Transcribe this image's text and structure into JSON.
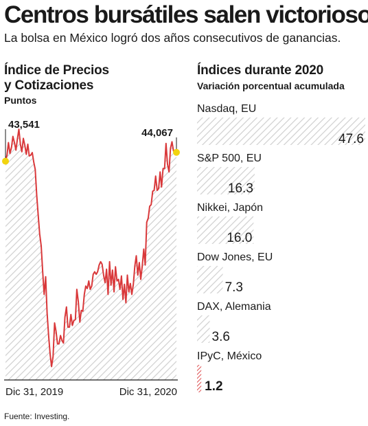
{
  "header": {
    "title": "Centros bursátiles salen victoriosos",
    "subtitle": "La bolsa en México logró dos años consecutivos de ganancias."
  },
  "colors": {
    "line": "#d9383a",
    "hatch": "#cfcfcf",
    "highlight": "#f2d40f",
    "text": "#1a1a1a",
    "mexico_bar": "#d9383a"
  },
  "chart_data": [
    {
      "type": "line",
      "title_line1": "Índice de Precios",
      "title_line2": "y Cotizaciones",
      "ylabel": "Puntos",
      "x_start_label": "Dic 31, 2019",
      "x_end_label": "Dic 31, 2020",
      "ylim": [
        30500,
        46800
      ],
      "start_value": 43541,
      "end_value": 44067,
      "start_label": "43,541",
      "end_label": "44,067",
      "series": [
        {
          "values": [
            43541,
            43900,
            44650,
            44000,
            44350,
            45020,
            44650,
            44200,
            44850,
            45450,
            44550,
            44100,
            44900,
            44500,
            43950,
            44550,
            43850,
            43900,
            44050,
            43500,
            43050,
            41500,
            40350,
            39200,
            38500,
            37000,
            35600,
            36650,
            34500,
            33150,
            32050,
            31300,
            31900,
            33900,
            33400,
            32650,
            32650,
            33150,
            32850,
            32700,
            34250,
            34850,
            33650,
            33650,
            34400,
            33750,
            34050,
            34100,
            35900,
            35150,
            33950,
            34650,
            34600,
            35600,
            36100,
            35950,
            36400,
            35900,
            36100,
            36800,
            36950,
            36800,
            36950,
            37350,
            37550,
            37400,
            36750,
            36300,
            37100,
            35600,
            37550,
            36150,
            37050,
            35750,
            37250,
            36400,
            36500,
            35900,
            36700,
            35300,
            36200,
            35100,
            36750,
            35750,
            36250,
            35600,
            36200,
            37300,
            37900,
            36750,
            37500,
            36500,
            37300,
            38300,
            37350,
            39900,
            40150,
            40850,
            40950,
            41750,
            41800,
            42650,
            41800,
            41900,
            42900,
            42000,
            43100,
            43100,
            44600,
            43350,
            42900,
            44300,
            44700,
            44150,
            44150,
            44067
          ]
        }
      ]
    },
    {
      "type": "bar",
      "title": "Índices durante 2020",
      "subtitle": "Variación porcentual acumulada",
      "xlim": [
        0,
        47.6
      ],
      "categories": [
        "Nasdaq, EU",
        "S&P 500, EU",
        "Nikkei, Japón",
        "Dow Jones, EU",
        "DAX, Alemania",
        "IPyC, México"
      ],
      "values": [
        47.6,
        16.3,
        16.0,
        7.3,
        3.6,
        1.2
      ],
      "value_labels": [
        "47.6",
        "16.3",
        "16.0",
        "7.3",
        "3.6",
        "1.2"
      ]
    }
  ],
  "source": "Fuente: Investing."
}
